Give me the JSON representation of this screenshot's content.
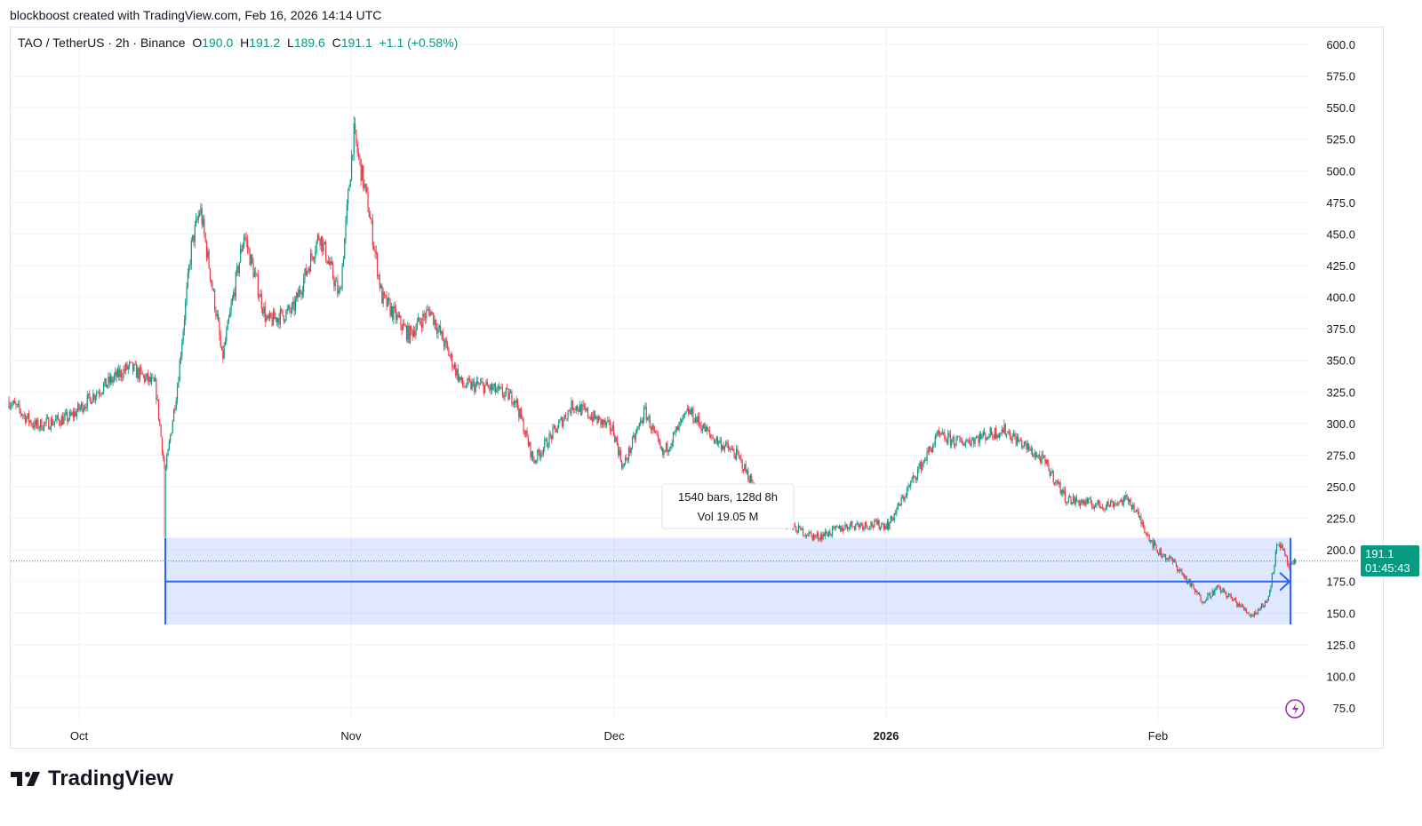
{
  "credit": "blockboost created with TradingView.com, Feb 16, 2026 14:14 UTC",
  "legend": {
    "symbol": "TAO / TetherUS · 2h · Binance",
    "o_label": "O",
    "o": "190.0",
    "h_label": "H",
    "h": "191.2",
    "l_label": "L",
    "l": "189.6",
    "c_label": "C",
    "c": "191.1",
    "change": "+1.1 (+0.58%)"
  },
  "price_label": {
    "price": "191.1",
    "countdown": "01:45:43"
  },
  "range_tooltip": {
    "bars": "1540 bars, 128d 8h",
    "vol": "Vol 19.05 M"
  },
  "logo": "TradingView",
  "colors": {
    "up": "#089981",
    "down": "#f23645",
    "range": "#2962ff",
    "price_tag": "#089981"
  },
  "chart_data": {
    "type": "candlestick",
    "title": "TAO / TetherUS · 2h · Binance",
    "ylim": [
      75,
      600
    ],
    "y_ticks": [
      "600.0",
      "575.0",
      "550.0",
      "525.0",
      "500.0",
      "475.0",
      "450.0",
      "425.0",
      "400.0",
      "375.0",
      "350.0",
      "325.0",
      "300.0",
      "275.0",
      "250.0",
      "225.0",
      "200.0",
      "175.0",
      "150.0",
      "125.0",
      "100.0",
      "75.0"
    ],
    "x_ticks": [
      {
        "label": "Oct",
        "day": 0
      },
      {
        "label": "Nov",
        "day": 31
      },
      {
        "label": "Dec",
        "day": 61
      },
      {
        "label": "2026",
        "day": 92
      },
      {
        "label": "Feb",
        "day": 123
      }
    ],
    "x_unit": "days since Oct 1 2025",
    "close_path": [
      [
        -8,
        318
      ],
      [
        -5,
        298
      ],
      [
        -1,
        305
      ],
      [
        2,
        325
      ],
      [
        5.7,
        345
      ],
      [
        8.7,
        330
      ],
      [
        9.8,
        260
      ],
      [
        11.2,
        330
      ],
      [
        12.8,
        440
      ],
      [
        13.8,
        470
      ],
      [
        15.8,
        380
      ],
      [
        16.3,
        350
      ],
      [
        18.8,
        450
      ],
      [
        21.4,
        380
      ],
      [
        24.4,
        390
      ],
      [
        27.4,
        450
      ],
      [
        29.7,
        400
      ],
      [
        31.3,
        530
      ],
      [
        33,
        470
      ],
      [
        34.5,
        400
      ],
      [
        37.6,
        370
      ],
      [
        40,
        390
      ],
      [
        43.7,
        330
      ],
      [
        46,
        330
      ],
      [
        49.7,
        320
      ],
      [
        51.8,
        270
      ],
      [
        53.8,
        290
      ],
      [
        56.3,
        315
      ],
      [
        60.9,
        295
      ],
      [
        62,
        265
      ],
      [
        64.5,
        310
      ],
      [
        66.5,
        275
      ],
      [
        69.5,
        310
      ],
      [
        72,
        290
      ],
      [
        75,
        275
      ],
      [
        79,
        225
      ],
      [
        84,
        210
      ],
      [
        88,
        220
      ],
      [
        92.3,
        220
      ],
      [
        95.4,
        260
      ],
      [
        97.9,
        290
      ],
      [
        100.5,
        285
      ],
      [
        105.5,
        295
      ],
      [
        110,
        270
      ],
      [
        112.6,
        240
      ],
      [
        116.6,
        235
      ],
      [
        119.7,
        240
      ],
      [
        122.8,
        200
      ],
      [
        124.8,
        190
      ],
      [
        128,
        160
      ],
      [
        129.9,
        170
      ],
      [
        133.7,
        148
      ],
      [
        135.5,
        160
      ],
      [
        136.7,
        208
      ],
      [
        138,
        185
      ],
      [
        138.8,
        191.1
      ]
    ],
    "range": {
      "start_day": 9.83,
      "end_day": 138.1,
      "high": 209.5,
      "low": 141,
      "mid": 175
    },
    "last_price": 191.1
  }
}
